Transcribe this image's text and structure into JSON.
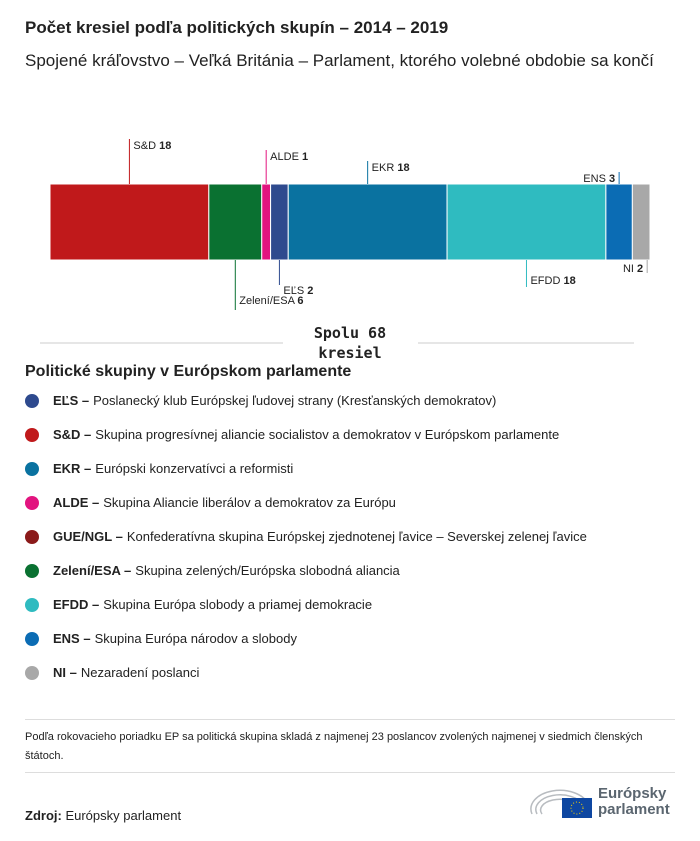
{
  "title": "Počet kresiel podľa politických skupín – 2014 – 2019",
  "subtitle": "Spojené kráľovstvo – Veľká Británia – Parlament, ktorého volebné obdobie sa končí",
  "chart_data": {
    "type": "bar",
    "orientation": "horizontal-stacked",
    "series": [
      {
        "name": "S&D",
        "value": 18,
        "color": "#c0191b"
      },
      {
        "name": "Zelení/ESA",
        "value": 6,
        "color": "#0a7131"
      },
      {
        "name": "ALDE",
        "value": 1,
        "color": "#e2147f"
      },
      {
        "name": "EĽS",
        "value": 2,
        "color": "#2e4a8e"
      },
      {
        "name": "EKR",
        "value": 18,
        "color": "#0a72a0"
      },
      {
        "name": "EFDD",
        "value": 18,
        "color": "#2fbbc0"
      },
      {
        "name": "ENS",
        "value": 3,
        "color": "#0b6cb4"
      },
      {
        "name": "NI",
        "value": 2,
        "color": "#a8a8a8"
      }
    ],
    "total_line1": "Spolu 68",
    "total_line2": "kresiel"
  },
  "legend": {
    "title": "Politické skupiny v Európskom parlamente",
    "items": [
      {
        "abbr": "EĽS –",
        "desc": "Poslanecký klub Európskej ľudovej strany (Kresťanských demokratov)",
        "color": "#2e4a8e"
      },
      {
        "abbr": "S&D –",
        "desc": "Skupina progresívnej aliancie socialistov a demokratov v Európskom parlamente",
        "color": "#c0191b"
      },
      {
        "abbr": "EKR –",
        "desc": "Európski konzervatívci a reformisti",
        "color": "#0a72a0"
      },
      {
        "abbr": "ALDE –",
        "desc": "Skupina Aliancie liberálov a demokratov za Európu",
        "color": "#e2147f"
      },
      {
        "abbr": "GUE/NGL –",
        "desc": "Konfederatívna skupina Európskej zjednotenej ľavice – Severskej zelenej ľavice",
        "color": "#8b1a1a"
      },
      {
        "abbr": "Zelení/ESA –",
        "desc": "Skupina zelených/Európska slobodná aliancia",
        "color": "#0a7131"
      },
      {
        "abbr": "EFDD –",
        "desc": "Skupina Európa slobody a priamej demokracie",
        "color": "#2fbbc0"
      },
      {
        "abbr": "ENS –",
        "desc": "Skupina Európa národov a slobody",
        "color": "#0b6cb4"
      },
      {
        "abbr": "NI –",
        "desc": "Nezaradení poslanci",
        "color": "#a8a8a8"
      }
    ]
  },
  "note": "Podľa rokovacieho poriadku EP sa politická skupina skladá z najmenej 23 poslancov zvolených najmenej v siedmich členských štátoch.",
  "source": {
    "label": "Zdroj:",
    "value": "Európsky parlament"
  },
  "logo": {
    "line1": "Európsky",
    "line2": "parlament"
  }
}
